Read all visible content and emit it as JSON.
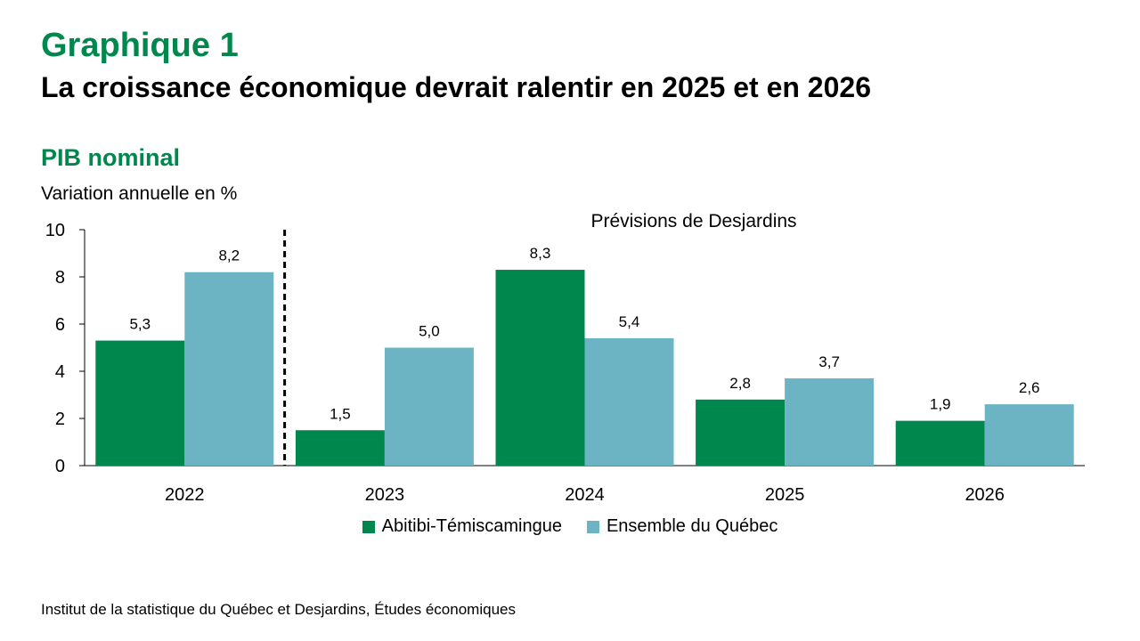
{
  "header": {
    "title": "Graphique 1",
    "subtitle": "La croissance économique devrait ralentir en 2025 et en 2026"
  },
  "colors": {
    "green": "#00874E",
    "teal": "#6CB4C4",
    "axis": "#000000"
  },
  "chart_data": {
    "type": "bar",
    "title": "PIB nominal",
    "ylabel": "Variation annuelle en %",
    "categories": [
      "2022",
      "2023",
      "2024",
      "2025",
      "2026"
    ],
    "series": [
      {
        "name": "Abitibi-Témiscamingue",
        "values": [
          5.3,
          1.5,
          8.3,
          2.8,
          1.9
        ],
        "labels": [
          "5,3",
          "1,5",
          "8,3",
          "2,8",
          "1,9"
        ],
        "color": "#00874E"
      },
      {
        "name": "Ensemble du Québec",
        "values": [
          8.2,
          5.0,
          5.4,
          3.7,
          2.6
        ],
        "labels": [
          "8,2",
          "5,0",
          "5,4",
          "3,7",
          "2,6"
        ],
        "color": "#6CB4C4"
      }
    ],
    "ylim": [
      0,
      10
    ],
    "yticks": [
      0,
      2,
      4,
      6,
      8,
      10
    ],
    "annotation": "Prévisions de Desjardins",
    "forecast_divider_after_category": "2022",
    "legend_position": "bottom",
    "grid": false
  },
  "footer": {
    "source": "Institut de la statistique du Québec et Desjardins, Études économiques"
  }
}
